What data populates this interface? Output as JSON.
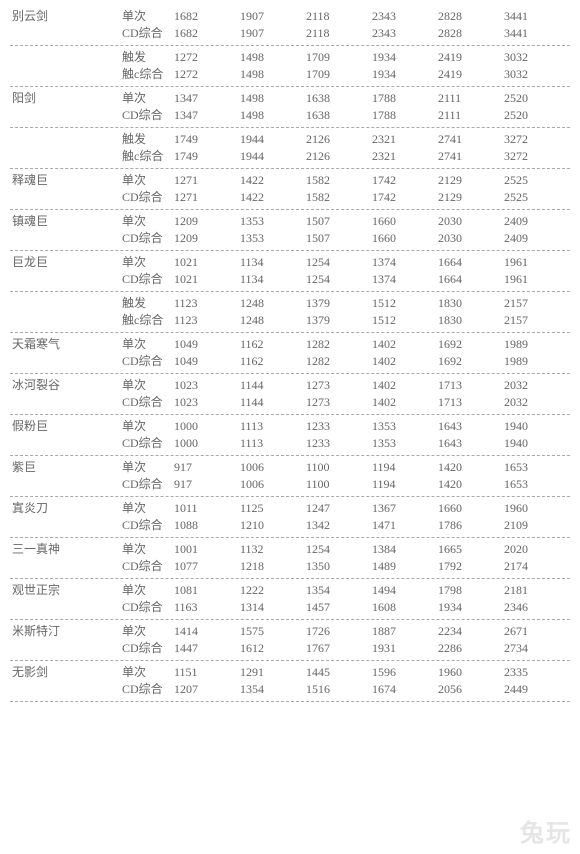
{
  "watermark": "兔玩",
  "row_types": {
    "single": "单次",
    "cd": "CD综合",
    "trigger": "触发",
    "triggerC": "触c综合"
  },
  "sections": [
    {
      "name": "别云剑",
      "blocks": [
        {
          "rows": [
            {
              "type": "single",
              "vals": [
                1682,
                1907,
                2118,
                2343,
                2828,
                3441
              ]
            },
            {
              "type": "cd",
              "vals": [
                1682,
                1907,
                2118,
                2343,
                2828,
                3441
              ]
            }
          ]
        },
        {
          "rows": [
            {
              "type": "trigger",
              "vals": [
                1272,
                1498,
                1709,
                1934,
                2419,
                3032
              ]
            },
            {
              "type": "triggerC",
              "vals": [
                1272,
                1498,
                1709,
                1934,
                2419,
                3032
              ]
            }
          ]
        }
      ]
    },
    {
      "name": "阳剑",
      "blocks": [
        {
          "rows": [
            {
              "type": "single",
              "vals": [
                1347,
                1498,
                1638,
                1788,
                2111,
                2520
              ]
            },
            {
              "type": "cd",
              "vals": [
                1347,
                1498,
                1638,
                1788,
                2111,
                2520
              ]
            }
          ]
        },
        {
          "rows": [
            {
              "type": "trigger",
              "vals": [
                1749,
                1944,
                2126,
                2321,
                2741,
                3272
              ]
            },
            {
              "type": "triggerC",
              "vals": [
                1749,
                1944,
                2126,
                2321,
                2741,
                3272
              ]
            }
          ]
        }
      ]
    },
    {
      "name": "释魂巨",
      "blocks": [
        {
          "rows": [
            {
              "type": "single",
              "vals": [
                1271,
                1422,
                1582,
                1742,
                2129,
                2525
              ]
            },
            {
              "type": "cd",
              "vals": [
                1271,
                1422,
                1582,
                1742,
                2129,
                2525
              ]
            }
          ]
        }
      ]
    },
    {
      "name": "镇魂巨",
      "blocks": [
        {
          "rows": [
            {
              "type": "single",
              "vals": [
                1209,
                1353,
                1507,
                1660,
                2030,
                2409
              ]
            },
            {
              "type": "cd",
              "vals": [
                1209,
                1353,
                1507,
                1660,
                2030,
                2409
              ]
            }
          ]
        }
      ]
    },
    {
      "name": "巨龙巨",
      "blocks": [
        {
          "rows": [
            {
              "type": "single",
              "vals": [
                1021,
                1134,
                1254,
                1374,
                1664,
                1961
              ]
            },
            {
              "type": "cd",
              "vals": [
                1021,
                1134,
                1254,
                1374,
                1664,
                1961
              ]
            }
          ]
        },
        {
          "rows": [
            {
              "type": "trigger",
              "vals": [
                1123,
                1248,
                1379,
                1512,
                1830,
                2157
              ]
            },
            {
              "type": "triggerC",
              "vals": [
                1123,
                1248,
                1379,
                1512,
                1830,
                2157
              ]
            }
          ]
        }
      ]
    },
    {
      "name": "天霜寒气",
      "blocks": [
        {
          "rows": [
            {
              "type": "single",
              "vals": [
                1049,
                1162,
                1282,
                1402,
                1692,
                1989
              ]
            },
            {
              "type": "cd",
              "vals": [
                1049,
                1162,
                1282,
                1402,
                1692,
                1989
              ]
            }
          ]
        }
      ]
    },
    {
      "name": "冰河裂谷",
      "blocks": [
        {
          "rows": [
            {
              "type": "single",
              "vals": [
                1023,
                1144,
                1273,
                1402,
                1713,
                2032
              ]
            },
            {
              "type": "cd",
              "vals": [
                1023,
                1144,
                1273,
                1402,
                1713,
                2032
              ]
            }
          ]
        }
      ]
    },
    {
      "name": "假粉巨",
      "blocks": [
        {
          "rows": [
            {
              "type": "single",
              "vals": [
                1000,
                1113,
                1233,
                1353,
                1643,
                1940
              ]
            },
            {
              "type": "cd",
              "vals": [
                1000,
                1113,
                1233,
                1353,
                1643,
                1940
              ]
            }
          ]
        }
      ]
    },
    {
      "name": "紫巨",
      "blocks": [
        {
          "rows": [
            {
              "type": "single",
              "vals": [
                917,
                1006,
                1100,
                1194,
                1420,
                1653
              ]
            },
            {
              "type": "cd",
              "vals": [
                917,
                1006,
                1100,
                1194,
                1420,
                1653
              ]
            }
          ]
        }
      ]
    },
    {
      "name": "寘炎刀",
      "blocks": [
        {
          "rows": [
            {
              "type": "single",
              "vals": [
                1011,
                1125,
                1247,
                1367,
                1660,
                1960
              ]
            },
            {
              "type": "cd",
              "vals": [
                1088,
                1210,
                1342,
                1471,
                1786,
                2109
              ]
            }
          ]
        }
      ]
    },
    {
      "name": "三一真神",
      "blocks": [
        {
          "rows": [
            {
              "type": "single",
              "vals": [
                1001,
                1132,
                1254,
                1384,
                1665,
                2020
              ]
            },
            {
              "type": "cd",
              "vals": [
                1077,
                1218,
                1350,
                1489,
                1792,
                2174
              ]
            }
          ]
        }
      ]
    },
    {
      "name": "观世正宗",
      "blocks": [
        {
          "rows": [
            {
              "type": "single",
              "vals": [
                1081,
                1222,
                1354,
                1494,
                1798,
                2181
              ]
            },
            {
              "type": "cd",
              "vals": [
                1163,
                1314,
                1457,
                1608,
                1934,
                2346
              ]
            }
          ]
        }
      ]
    },
    {
      "name": "米斯特汀",
      "blocks": [
        {
          "rows": [
            {
              "type": "single",
              "vals": [
                1414,
                1575,
                1726,
                1887,
                2234,
                2671
              ]
            },
            {
              "type": "cd",
              "vals": [
                1447,
                1612,
                1767,
                1931,
                2286,
                2734
              ]
            }
          ]
        }
      ]
    },
    {
      "name": "无影剑",
      "blocks": [
        {
          "rows": [
            {
              "type": "single",
              "vals": [
                1151,
                1291,
                1445,
                1596,
                1960,
                2335
              ]
            },
            {
              "type": "cd",
              "vals": [
                1207,
                1354,
                1516,
                1674,
                2056,
                2449
              ]
            }
          ]
        }
      ]
    }
  ]
}
